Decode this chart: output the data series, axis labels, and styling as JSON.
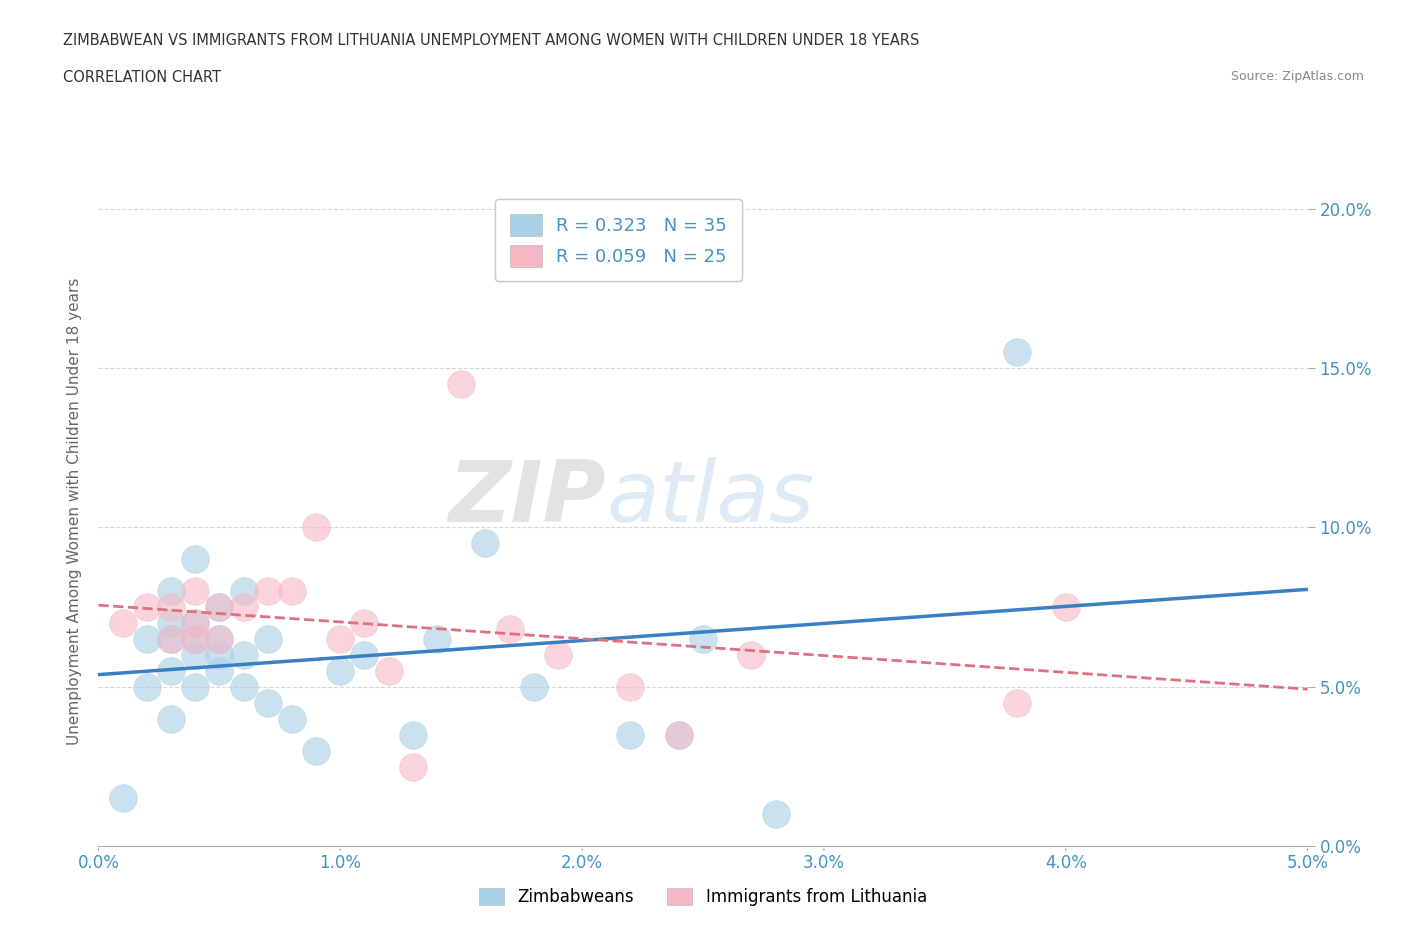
{
  "title": "ZIMBABWEAN VS IMMIGRANTS FROM LITHUANIA UNEMPLOYMENT AMONG WOMEN WITH CHILDREN UNDER 18 YEARS",
  "subtitle": "CORRELATION CHART",
  "source": "Source: ZipAtlas.com",
  "ylabel": "Unemployment Among Women with Children Under 18 years",
  "xlim": [
    0.0,
    0.05
  ],
  "ylim": [
    0.0,
    0.21
  ],
  "xticks": [
    0.0,
    0.01,
    0.02,
    0.03,
    0.04,
    0.05
  ],
  "yticks": [
    0.0,
    0.05,
    0.1,
    0.15,
    0.2
  ],
  "xtick_labels": [
    "0.0%",
    "1.0%",
    "2.0%",
    "3.0%",
    "4.0%",
    "5.0%"
  ],
  "ytick_labels_right": [
    "0.0%",
    "5.0%",
    "10.0%",
    "15.0%",
    "20.0%"
  ],
  "blue_color": "#A8D0E6",
  "pink_color": "#F5B8C4",
  "blue_line_color": "#3A7FC1",
  "pink_line_color": "#E07080",
  "r_blue": 0.323,
  "n_blue": 35,
  "r_pink": 0.059,
  "n_pink": 25,
  "watermark_zip": "ZIP",
  "watermark_atlas": "atlas",
  "legend_blue_label": "Zimbabweans",
  "legend_pink_label": "Immigrants from Lithuania",
  "zimbabwe_x": [
    0.001,
    0.002,
    0.002,
    0.003,
    0.003,
    0.003,
    0.003,
    0.003,
    0.004,
    0.004,
    0.004,
    0.004,
    0.004,
    0.005,
    0.005,
    0.005,
    0.005,
    0.006,
    0.006,
    0.006,
    0.007,
    0.007,
    0.008,
    0.009,
    0.01,
    0.011,
    0.013,
    0.014,
    0.016,
    0.018,
    0.022,
    0.024,
    0.025,
    0.028,
    0.038
  ],
  "zimbabwe_y": [
    0.015,
    0.05,
    0.065,
    0.04,
    0.055,
    0.065,
    0.07,
    0.08,
    0.05,
    0.06,
    0.065,
    0.07,
    0.09,
    0.055,
    0.06,
    0.065,
    0.075,
    0.05,
    0.06,
    0.08,
    0.045,
    0.065,
    0.04,
    0.03,
    0.055,
    0.06,
    0.035,
    0.065,
    0.095,
    0.05,
    0.035,
    0.035,
    0.065,
    0.01,
    0.155
  ],
  "lithuania_x": [
    0.001,
    0.002,
    0.003,
    0.003,
    0.004,
    0.004,
    0.004,
    0.005,
    0.005,
    0.006,
    0.007,
    0.008,
    0.009,
    0.01,
    0.011,
    0.012,
    0.013,
    0.015,
    0.017,
    0.019,
    0.022,
    0.024,
    0.027,
    0.038,
    0.04
  ],
  "lithuania_y": [
    0.07,
    0.075,
    0.075,
    0.065,
    0.065,
    0.07,
    0.08,
    0.065,
    0.075,
    0.075,
    0.08,
    0.08,
    0.1,
    0.065,
    0.07,
    0.055,
    0.025,
    0.145,
    0.068,
    0.06,
    0.05,
    0.035,
    0.06,
    0.045,
    0.075
  ]
}
